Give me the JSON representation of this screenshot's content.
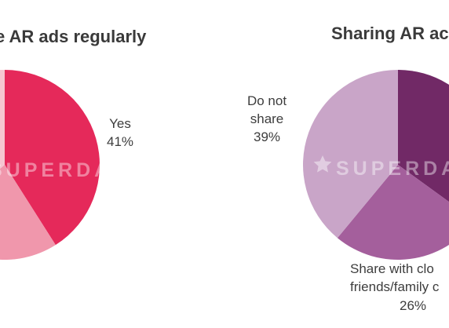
{
  "watermark": "SUPERDATA",
  "chart_data": [
    {
      "type": "pie",
      "title": "e AR ads regularly",
      "slices": [
        {
          "label": "Yes",
          "value": 41,
          "value_label": "41%",
          "color": "#e5295a"
        },
        {
          "label": "",
          "value": 23,
          "color": "#f097ac"
        },
        {
          "label": "",
          "value": 36,
          "color": "#f6c6d1"
        }
      ]
    },
    {
      "type": "pie",
      "title": "Sharing AR ac",
      "slices": [
        {
          "label": "",
          "value": 35,
          "color": "#712966"
        },
        {
          "label": "Share with clo friends/family c",
          "label_lines": [
            "Share with clo",
            "friends/family c"
          ],
          "value": 26,
          "value_label": "26%",
          "color": "#a45f9c"
        },
        {
          "label": "Do not share",
          "label_lines": [
            "Do not",
            "share"
          ],
          "value": 39,
          "value_label": "39%",
          "color": "#c9a5c8"
        }
      ]
    }
  ]
}
